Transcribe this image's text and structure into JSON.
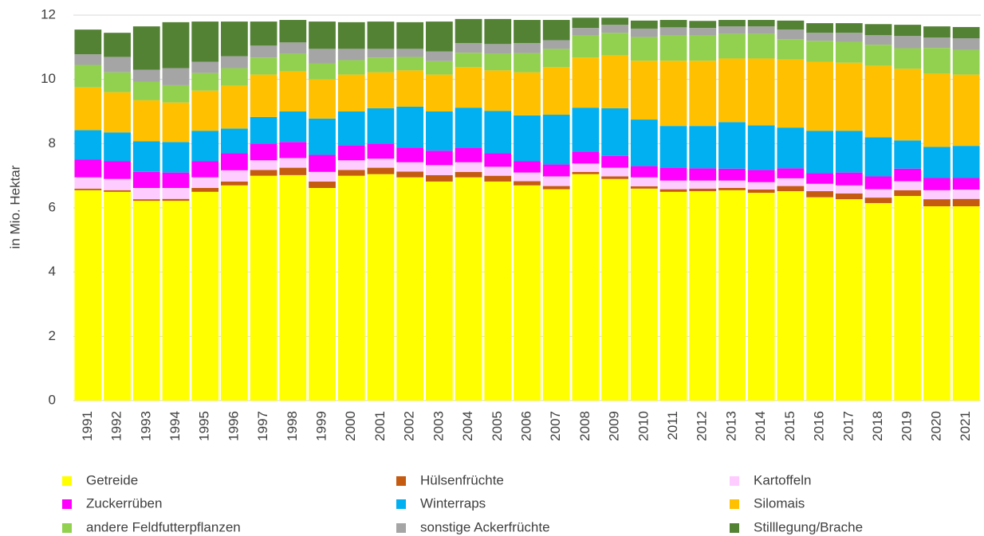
{
  "chart_data": {
    "type": "stacked_bar",
    "y_label": "in Mio. Hektar",
    "categories": [
      "1991",
      "1992",
      "1993",
      "1994",
      "1995",
      "1996",
      "1997",
      "1998",
      "1999",
      "2000",
      "2001",
      "2002",
      "2003",
      "2004",
      "2005",
      "2006",
      "2007",
      "2008",
      "2009",
      "2010",
      "2011",
      "2012",
      "2013",
      "2014",
      "2015",
      "2016",
      "2017",
      "2018",
      "2019",
      "2020",
      "2021"
    ],
    "series": [
      {
        "name": "Getreide",
        "color": "#ffff00",
        "values": [
          6.55,
          6.5,
          6.22,
          6.22,
          6.5,
          6.7,
          7.0,
          7.02,
          6.62,
          7.0,
          7.05,
          6.95,
          6.82,
          6.95,
          6.82,
          6.7,
          6.58,
          7.05,
          6.9,
          6.6,
          6.5,
          6.52,
          6.55,
          6.47,
          6.52,
          6.33,
          6.27,
          6.15,
          6.37,
          6.05,
          6.05
        ]
      },
      {
        "name": "Hülsenfrüchte",
        "color": "#c55a11",
        "values": [
          0.05,
          0.05,
          0.05,
          0.06,
          0.12,
          0.12,
          0.18,
          0.23,
          0.2,
          0.18,
          0.2,
          0.18,
          0.2,
          0.17,
          0.18,
          0.13,
          0.1,
          0.07,
          0.08,
          0.07,
          0.08,
          0.08,
          0.07,
          0.1,
          0.16,
          0.19,
          0.18,
          0.17,
          0.18,
          0.22,
          0.23
        ]
      },
      {
        "name": "Kartoffeln",
        "color": "#ffccff",
        "values": [
          0.35,
          0.35,
          0.35,
          0.34,
          0.33,
          0.35,
          0.3,
          0.3,
          0.3,
          0.3,
          0.28,
          0.29,
          0.31,
          0.3,
          0.28,
          0.27,
          0.3,
          0.26,
          0.27,
          0.28,
          0.27,
          0.25,
          0.23,
          0.23,
          0.24,
          0.23,
          0.25,
          0.26,
          0.28,
          0.28,
          0.29
        ]
      },
      {
        "name": "Zuckerrüben",
        "color": "#ff00ff",
        "values": [
          0.55,
          0.55,
          0.5,
          0.48,
          0.5,
          0.53,
          0.52,
          0.5,
          0.53,
          0.47,
          0.47,
          0.46,
          0.45,
          0.45,
          0.42,
          0.35,
          0.37,
          0.37,
          0.37,
          0.35,
          0.4,
          0.38,
          0.37,
          0.38,
          0.31,
          0.33,
          0.4,
          0.4,
          0.39,
          0.38,
          0.36
        ]
      },
      {
        "name": "Winterraps",
        "color": "#00b0f0",
        "values": [
          0.92,
          0.9,
          0.95,
          0.95,
          0.95,
          0.77,
          0.83,
          0.95,
          1.13,
          1.05,
          1.1,
          1.27,
          1.22,
          1.25,
          1.32,
          1.43,
          1.55,
          1.37,
          1.48,
          1.45,
          1.3,
          1.32,
          1.45,
          1.39,
          1.27,
          1.32,
          1.3,
          1.22,
          0.88,
          0.97,
          1.0
        ]
      },
      {
        "name": "Silomais",
        "color": "#ffc000",
        "values": [
          1.33,
          1.25,
          1.28,
          1.23,
          1.25,
          1.33,
          1.32,
          1.25,
          1.22,
          1.15,
          1.12,
          1.13,
          1.15,
          1.26,
          1.26,
          1.34,
          1.48,
          1.56,
          1.65,
          1.83,
          2.03,
          2.03,
          1.98,
          2.08,
          2.12,
          2.15,
          2.12,
          2.22,
          2.23,
          2.28,
          2.22
        ]
      },
      {
        "name": "andere Feldfutterpflanzen",
        "color": "#92d050",
        "values": [
          0.7,
          0.62,
          0.58,
          0.54,
          0.55,
          0.55,
          0.53,
          0.55,
          0.5,
          0.45,
          0.46,
          0.42,
          0.42,
          0.45,
          0.52,
          0.6,
          0.57,
          0.7,
          0.7,
          0.74,
          0.8,
          0.8,
          0.77,
          0.77,
          0.63,
          0.65,
          0.65,
          0.66,
          0.64,
          0.8,
          0.77
        ]
      },
      {
        "name": "sonstige Ackerfrüchte",
        "color": "#a5a5a5",
        "values": [
          0.33,
          0.48,
          0.37,
          0.53,
          0.35,
          0.37,
          0.37,
          0.35,
          0.45,
          0.35,
          0.27,
          0.25,
          0.3,
          0.3,
          0.3,
          0.31,
          0.27,
          0.22,
          0.25,
          0.26,
          0.24,
          0.22,
          0.23,
          0.23,
          0.3,
          0.25,
          0.28,
          0.3,
          0.38,
          0.32,
          0.36
        ]
      },
      {
        "name": "Stilllegung/Brache",
        "color": "#548235",
        "values": [
          0.77,
          0.75,
          1.35,
          1.43,
          1.25,
          1.08,
          0.75,
          0.7,
          0.85,
          0.83,
          0.85,
          0.83,
          0.93,
          0.75,
          0.78,
          0.72,
          0.63,
          0.32,
          0.22,
          0.25,
          0.23,
          0.22,
          0.2,
          0.2,
          0.28,
          0.3,
          0.3,
          0.34,
          0.35,
          0.35,
          0.35
        ]
      }
    ],
    "ylim": [
      0,
      12
    ],
    "yticks": [
      0,
      2,
      4,
      6,
      8,
      10,
      12
    ],
    "grid": true,
    "legend": "bottom"
  }
}
